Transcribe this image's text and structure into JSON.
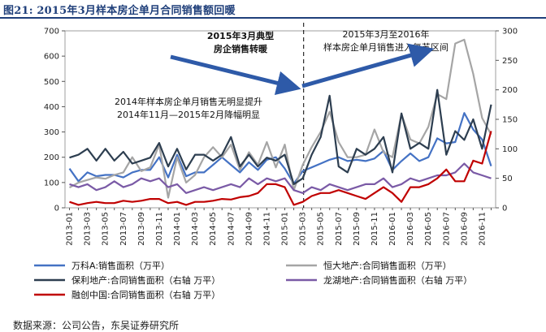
{
  "figure_title": "图21: 2015年3月样本房企单月合同销售额回暖",
  "source_note": "数据来源：公司公告，东吴证券研究所",
  "chart_data": {
    "type": "line",
    "x": [
      "2013-01",
      "2013-02",
      "2013-03",
      "2013-04",
      "2013-05",
      "2013-06",
      "2013-07",
      "2013-08",
      "2013-09",
      "2013-10",
      "2013-11",
      "2013-12",
      "2014-01",
      "2014-02",
      "2014-03",
      "2014-04",
      "2014-05",
      "2014-06",
      "2014-07",
      "2014-08",
      "2014-09",
      "2014-10",
      "2014-11",
      "2014-12",
      "2015-01",
      "2015-02",
      "2015-03",
      "2015-04",
      "2015-05",
      "2015-06",
      "2015-07",
      "2015-08",
      "2015-09",
      "2015-10",
      "2015-11",
      "2015-12",
      "2016-01",
      "2016-02",
      "2016-03",
      "2016-04",
      "2016-05",
      "2016-06",
      "2016-07",
      "2016-08",
      "2016-09",
      "2016-10",
      "2016-11",
      "2016-12"
    ],
    "x_tick_labels": [
      "2013-01",
      "2013-03",
      "2013-05",
      "2013-07",
      "2013-09",
      "2013-11",
      "2014-01",
      "2014-03",
      "2014-05",
      "2014-07",
      "2014-09",
      "2014-11",
      "2015-01",
      "2015-03",
      "2015-05",
      "2015-07",
      "2015-09",
      "2015-11",
      "2016-01",
      "2016-03",
      "2016-05",
      "2016-07",
      "2016-09",
      "2016-11"
    ],
    "y_left": {
      "ylim": [
        0,
        700
      ],
      "ticks": [
        0,
        100,
        200,
        300,
        400,
        500,
        600,
        700
      ]
    },
    "y_right": {
      "ylim": [
        0,
        300
      ],
      "ticks": [
        0,
        50,
        100,
        150,
        200,
        250,
        300
      ]
    },
    "series": [
      {
        "name": "万科A:销售面积（万平）",
        "axis": "left",
        "color": "#4472c4",
        "values": [
          155,
          105,
          140,
          125,
          130,
          130,
          120,
          140,
          150,
          150,
          200,
          120,
          210,
          125,
          140,
          140,
          170,
          200,
          170,
          140,
          180,
          150,
          190,
          200,
          155,
          95,
          145,
          160,
          175,
          190,
          200,
          185,
          190,
          185,
          195,
          225,
          150,
          185,
          215,
          185,
          200,
          275,
          255,
          260,
          375,
          310,
          270,
          165
        ]
      },
      {
        "name": "恒大地产:合同销售面积（万平）",
        "axis": "left",
        "color": "#a5a5a5",
        "values": [
          80,
          100,
          110,
          120,
          115,
          130,
          140,
          200,
          145,
          160,
          250,
          40,
          200,
          100,
          130,
          200,
          240,
          200,
          250,
          150,
          220,
          170,
          260,
          160,
          250,
          70,
          170,
          240,
          300,
          380,
          260,
          200,
          200,
          210,
          310,
          220,
          200,
          370,
          270,
          255,
          320,
          450,
          430,
          650,
          665,
          530,
          355,
          290
        ]
      },
      {
        "name": "保利地产:合同销售面积（右轴 万平）",
        "axis": "right",
        "color": "#2d3e50",
        "values": [
          85,
          90,
          100,
          80,
          100,
          80,
          95,
          75,
          80,
          85,
          110,
          70,
          100,
          65,
          90,
          90,
          80,
          90,
          120,
          70,
          90,
          70,
          85,
          80,
          90,
          40,
          50,
          90,
          120,
          190,
          70,
          60,
          100,
          90,
          100,
          120,
          60,
          160,
          100,
          110,
          100,
          200,
          90,
          130,
          115,
          150,
          100,
          175
        ]
      },
      {
        "name": "龙湖地产:合同销售面积（右轴 万平）",
        "axis": "right",
        "color": "#7a5aa6",
        "values": [
          40,
          35,
          40,
          30,
          35,
          45,
          35,
          40,
          50,
          45,
          50,
          35,
          40,
          25,
          30,
          35,
          30,
          35,
          40,
          35,
          50,
          40,
          50,
          45,
          50,
          30,
          25,
          35,
          30,
          40,
          35,
          30,
          35,
          40,
          40,
          50,
          35,
          40,
          50,
          45,
          50,
          55,
          55,
          60,
          75,
          60,
          55,
          50
        ]
      },
      {
        "name": "融创中国:合同销售面积（右轴 万平）",
        "axis": "right",
        "color": "#c00000",
        "values": [
          10,
          5,
          8,
          10,
          8,
          8,
          12,
          10,
          12,
          15,
          15,
          8,
          10,
          5,
          10,
          10,
          12,
          15,
          14,
          18,
          20,
          25,
          40,
          40,
          35,
          5,
          10,
          20,
          25,
          25,
          30,
          25,
          20,
          15,
          25,
          35,
          25,
          10,
          35,
          35,
          40,
          50,
          65,
          45,
          45,
          80,
          75,
          130
        ]
      }
    ],
    "annotations": [
      {
        "text_lines": [
          "2015年3月典型",
          "房企销售转暖"
        ],
        "bold": true
      },
      {
        "text_lines": [
          "2015年3月至2016年",
          "样本房企单月销售进入复苏区间"
        ],
        "bold": false
      },
      {
        "text_lines": [
          "2014年样本房企单月销售无明显提升",
          "2014年11月—2015年2月降幅明显"
        ],
        "bold": false
      }
    ],
    "divider_at": "2015-03",
    "legend_position": "bottom"
  }
}
